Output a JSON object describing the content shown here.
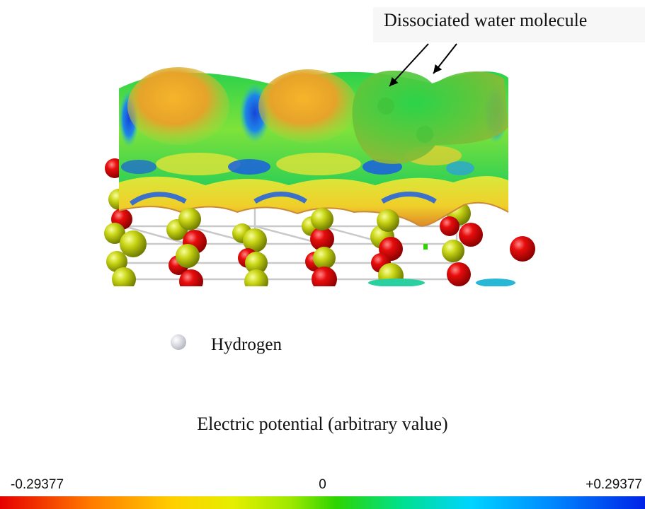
{
  "annotation": {
    "label": "Dissociated water molecule"
  },
  "legend": {
    "label": "Hydrogen",
    "icon": "hydrogen-atom-icon"
  },
  "colorbar": {
    "title": "Electric potential (arbitrary value)",
    "min_label": "-0.29377",
    "mid_label": "0",
    "max_label": "+0.29377",
    "colors": [
      "#e60000",
      "#ff7a00",
      "#ffd000",
      "#9fe800",
      "#2ed400",
      "#00d4ff",
      "#008cff",
      "#0022e6"
    ]
  }
}
